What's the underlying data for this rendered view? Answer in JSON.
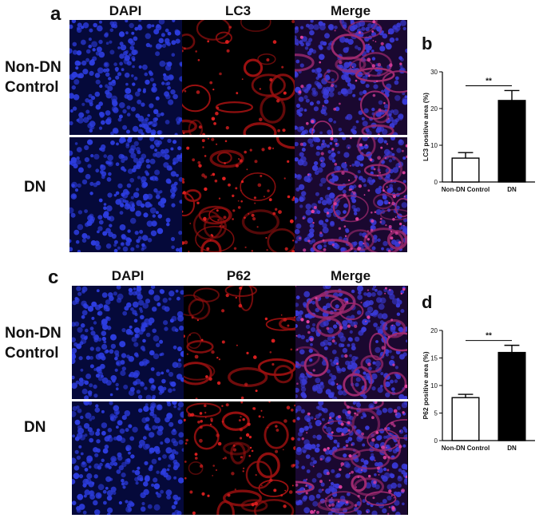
{
  "figure": {
    "panels": [
      {
        "id": "a",
        "letter": "a",
        "columns": [
          "DAPI",
          "LC3",
          "Merge"
        ],
        "rows": [
          {
            "lines": [
              "Non-DN",
              "Control"
            ]
          },
          {
            "lines": [
              "DN"
            ]
          }
        ]
      },
      {
        "id": "c",
        "letter": "c",
        "columns": [
          "DAPI",
          "P62",
          "Merge"
        ],
        "rows": [
          {
            "lines": [
              "Non-DN",
              "Control"
            ]
          },
          {
            "lines": [
              "DN"
            ]
          }
        ]
      }
    ],
    "colors": {
      "dapi": "#1f2fd6",
      "lc3": "#b01010",
      "merge": "#6b2fb0",
      "background": "#000000"
    }
  },
  "chart_data": [
    {
      "panel": "b",
      "type": "bar",
      "categories": [
        "Non-DN Control",
        "DN"
      ],
      "values": [
        6.5,
        22.2
      ],
      "errors": [
        1.5,
        2.7
      ],
      "bar_fills": [
        "#ffffff",
        "#000000"
      ],
      "ylabel": "LC3 positive area (%)",
      "ylim": [
        0,
        30
      ],
      "yticks": [
        0,
        10,
        20,
        30
      ],
      "significance": "**"
    },
    {
      "panel": "d",
      "type": "bar",
      "categories": [
        "Non-DN Control",
        "DN"
      ],
      "values": [
        7.8,
        16.0
      ],
      "errors": [
        0.6,
        1.3
      ],
      "bar_fills": [
        "#ffffff",
        "#000000"
      ],
      "ylabel": "P62 positive area (%)",
      "ylim": [
        0,
        20
      ],
      "yticks": [
        0,
        5,
        10,
        15,
        20
      ],
      "significance": "**"
    }
  ]
}
